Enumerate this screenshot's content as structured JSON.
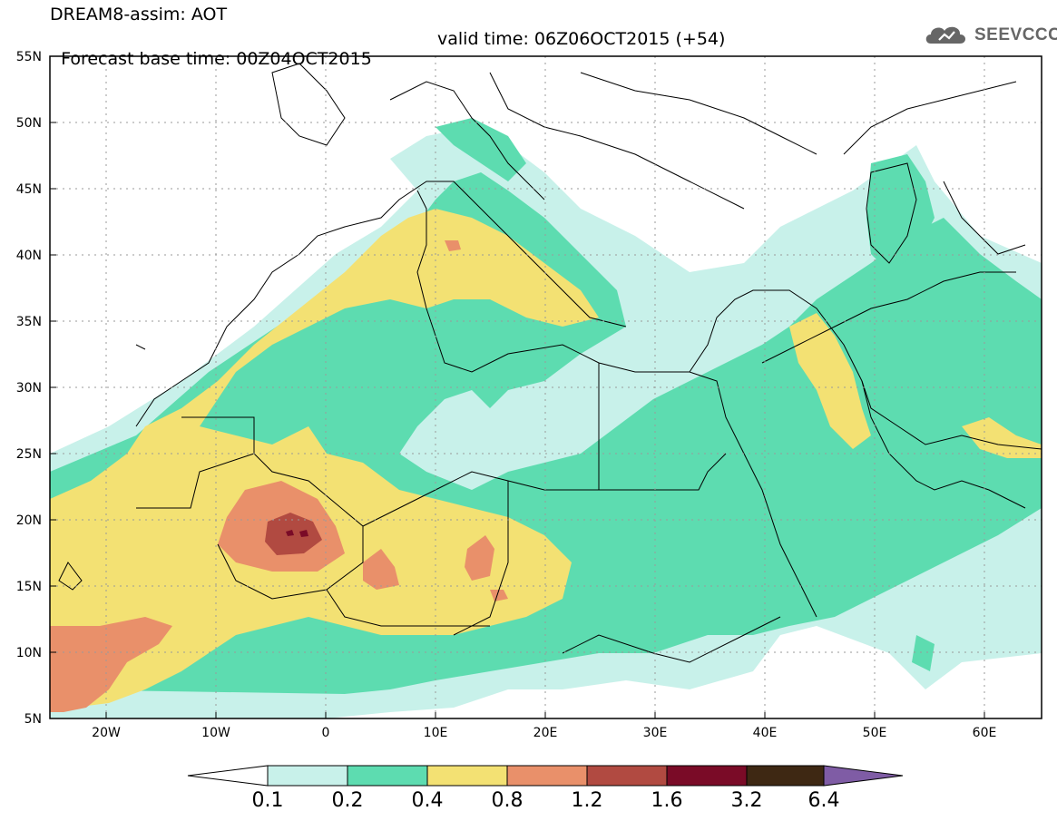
{
  "title": {
    "line1": "DREAM8-assim: AOT",
    "line2_left": "Forecast base time: 00Z04OCT2015",
    "line2_right": "valid time: 06Z06OCT2015 (+54)"
  },
  "logo": {
    "text": "SEEVCCC",
    "icon": "cloud-logo-icon"
  },
  "map": {
    "lat_ticks": [
      "55N",
      "50N",
      "45N",
      "40N",
      "35N",
      "30N",
      "25N",
      "20N",
      "15N",
      "10N",
      "5N"
    ],
    "lon_ticks": [
      "20W",
      "10W",
      "0",
      "10E",
      "20E",
      "30E",
      "40E",
      "50E",
      "60E"
    ],
    "extent": {
      "lon_min": -25,
      "lon_max": 65,
      "lat_min": 5,
      "lat_max": 55
    }
  },
  "colorbar": {
    "labels": [
      "0.1",
      "0.2",
      "0.4",
      "0.8",
      "1.2",
      "1.6",
      "3.2",
      "6.4"
    ],
    "colors": [
      "#c8f1ea",
      "#5ddcb0",
      "#f3e173",
      "#e9906a",
      "#b14a41",
      "#7a0b27",
      "#3e2813",
      "#7f5ca5"
    ],
    "under_color": "#ffffff"
  },
  "colors": {
    "level1": "#c8f1ea",
    "level2": "#5ddcb0",
    "level3": "#f3e173",
    "level4": "#e9906a",
    "level5": "#b14a41",
    "level6": "#7a0b27",
    "coast": "#000000",
    "grid": "#9a9a9a"
  }
}
